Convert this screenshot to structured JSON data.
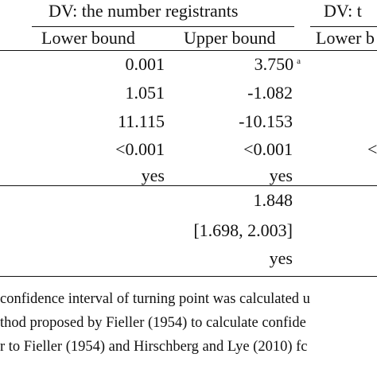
{
  "header": {
    "group1": "DV: the number registrants",
    "group2": "DV: t",
    "col_lower1": "Lower bound",
    "col_upper1": "Upper bound",
    "col_lower2": "Lower b"
  },
  "rows": [
    {
      "lower": "0.001",
      "upper": "3.750",
      "upper_sup": "a",
      "lower2": ""
    },
    {
      "lower": "1.051",
      "upper": "-1.082",
      "upper_sup": "",
      "lower2": ""
    },
    {
      "lower": "11.115",
      "upper": "-10.153",
      "upper_sup": "",
      "lower2": ""
    },
    {
      "lower": "<0.001",
      "upper": "<0.001",
      "upper_sup": "",
      "lower2": "<"
    },
    {
      "lower": "yes",
      "upper": "yes",
      "upper_sup": "",
      "lower2": ""
    }
  ],
  "turning_point": {
    "value": "1.848",
    "ci": "[1.698, 2.003]",
    "flag": "yes"
  },
  "notes": [
    "confidence interval of turning point was calculated u",
    "thod proposed by Fieller (1954) to calculate confide",
    "r to Fieller (1954) and Hirschberg and Lye (2010) fc"
  ]
}
